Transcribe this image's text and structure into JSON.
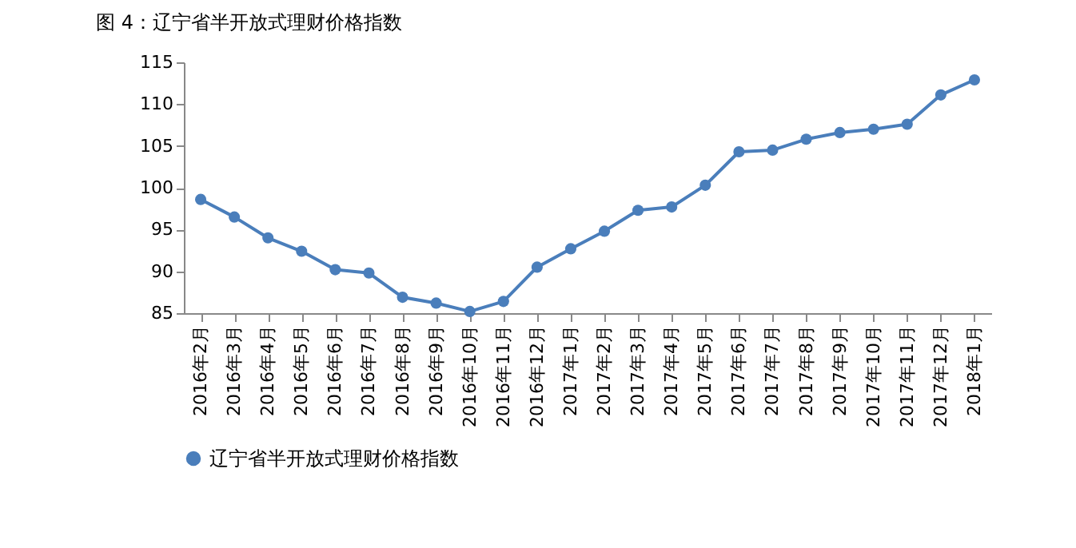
{
  "chart_data": {
    "type": "line",
    "title": "图 4：辽宁省半开放式理财价格指数",
    "categories": [
      "2016年2月",
      "2016年3月",
      "2016年4月",
      "2016年5月",
      "2016年6月",
      "2016年7月",
      "2016年8月",
      "2016年9月",
      "2016年10月",
      "2016年11月",
      "2016年12月",
      "2017年1月",
      "2017年2月",
      "2017年3月",
      "2017年4月",
      "2017年5月",
      "2017年6月",
      "2017年7月",
      "2017年8月",
      "2017年9月",
      "2017年10月",
      "2017年11月",
      "2017年12月",
      "2018年1月"
    ],
    "series": [
      {
        "name": "辽宁省半开放式理财价格指数",
        "color": "#4a7ebb",
        "values": [
          98.6,
          96.5,
          94.0,
          92.4,
          90.2,
          89.8,
          86.9,
          86.2,
          85.2,
          86.4,
          90.5,
          92.7,
          94.8,
          97.3,
          97.7,
          100.3,
          104.3,
          104.5,
          105.8,
          106.6,
          107.0,
          107.6,
          111.1,
          112.9
        ]
      }
    ],
    "ylim": [
      85,
      115
    ],
    "yticks": [
      85,
      90,
      95,
      100,
      105,
      110,
      115
    ],
    "grid": false,
    "legend": "bottom",
    "marker": "circle",
    "line_style": "solid"
  }
}
